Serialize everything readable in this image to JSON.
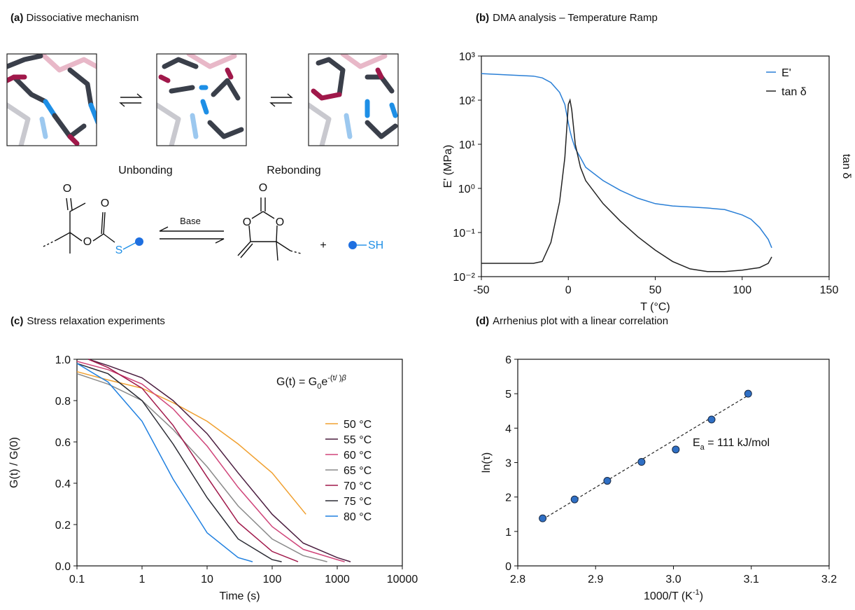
{
  "diagram": {
    "label": "(a)",
    "title": "Dissociative mechanism",
    "steps": [
      "Unbonding",
      "Rebonding"
    ],
    "reagent": "Base",
    "plus": "+",
    "atoms": [
      "O",
      "O",
      "O",
      "S",
      "O",
      "O",
      "O",
      "SH"
    ]
  },
  "chart_data": [
    {
      "type": "line",
      "label": "(b)",
      "title": "DMA analysis – Temperature Ramp",
      "xlabel": "T (°C)",
      "ylabel": "E' (MPa)",
      "y2label": "tan δ",
      "xlim": [
        -50,
        150
      ],
      "xticks": [
        -50,
        0,
        50,
        100,
        150
      ],
      "ylim": [
        0.01,
        1000
      ],
      "ylog": true,
      "yticks": [
        {
          "value": 0.01,
          "label": "10⁻²"
        },
        {
          "value": 0.1,
          "label": "10⁻¹"
        },
        {
          "value": 1,
          "label": "10⁰"
        },
        {
          "value": 10,
          "label": "10¹"
        },
        {
          "value": 100,
          "label": "10²"
        },
        {
          "value": 1000,
          "label": "10³"
        }
      ],
      "legend": "upper right",
      "x": [
        -50,
        -20,
        -15,
        -10,
        -5,
        -2,
        0,
        1,
        2,
        4,
        7,
        10,
        20,
        30,
        40,
        50,
        60,
        70,
        80,
        90,
        100,
        105,
        110,
        115,
        117
      ],
      "series": [
        {
          "name": "E'",
          "color": "#2a7fd6",
          "values": [
            400,
            350,
            320,
            250,
            150,
            80,
            30,
            20,
            14,
            8,
            5,
            3,
            1.5,
            0.9,
            0.6,
            0.45,
            0.4,
            0.38,
            0.36,
            0.33,
            0.25,
            0.2,
            0.13,
            0.07,
            0.045
          ]
        },
        {
          "name": "tan δ",
          "color": "#222222",
          "values": [
            0.02,
            0.02,
            0.022,
            0.06,
            0.5,
            5,
            80,
            100,
            60,
            10,
            3,
            1.5,
            0.45,
            0.18,
            0.08,
            0.04,
            0.022,
            0.015,
            0.013,
            0.013,
            0.014,
            0.015,
            0.016,
            0.02,
            0.028
          ]
        }
      ]
    },
    {
      "type": "line",
      "label": "(c)",
      "title": "Stress relaxation experiments",
      "xlabel": "Time (s)",
      "ylabel": "G(t) / G(0)",
      "annotation": [
        "G(t) = G",
        "0",
        "e",
        "-(t/ )",
        "β"
      ],
      "xlim": [
        0.1,
        10000
      ],
      "xlog": true,
      "xticks": [
        0.1,
        1,
        10,
        100,
        1000,
        10000
      ],
      "ylim": [
        0,
        1
      ],
      "yticks": [
        {
          "value": 0,
          "label": "0.0"
        },
        0.2,
        0.4,
        0.6,
        0.8,
        {
          "value": 1,
          "label": "1.0"
        }
      ],
      "legend": "center right",
      "series": [
        {
          "name": "50 °C",
          "color": "#f0a030",
          "x": [
            0.1,
            0.3,
            1,
            3,
            10,
            30,
            100,
            330
          ],
          "values": [
            0.94,
            0.9,
            0.86,
            0.79,
            0.7,
            0.59,
            0.45,
            0.25
          ]
        },
        {
          "name": "55 °C",
          "color": "#4a1d3f",
          "x": [
            0.15,
            0.3,
            1,
            3,
            10,
            30,
            100,
            300,
            1000,
            1600
          ],
          "values": [
            1,
            0.97,
            0.91,
            0.8,
            0.64,
            0.45,
            0.25,
            0.11,
            0.04,
            0.02
          ]
        },
        {
          "name": "60 °C",
          "color": "#d0457a",
          "x": [
            0.1,
            0.3,
            1,
            3,
            10,
            30,
            100,
            300,
            1000,
            1300
          ],
          "values": [
            0.99,
            0.95,
            0.88,
            0.76,
            0.58,
            0.38,
            0.19,
            0.08,
            0.03,
            0.02
          ]
        },
        {
          "name": "65 °C",
          "color": "#8a8a8a",
          "x": [
            0.1,
            0.3,
            1,
            3,
            10,
            30,
            100,
            300,
            700
          ],
          "values": [
            0.93,
            0.88,
            0.8,
            0.66,
            0.48,
            0.29,
            0.13,
            0.05,
            0.02
          ]
        },
        {
          "name": "70 °C",
          "color": "#a0184a",
          "x": [
            0.15,
            0.3,
            1,
            3,
            10,
            30,
            100,
            250
          ],
          "values": [
            1,
            0.96,
            0.86,
            0.68,
            0.43,
            0.21,
            0.07,
            0.02
          ]
        },
        {
          "name": "75 °C",
          "color": "#2a2a33",
          "x": [
            0.1,
            0.3,
            1,
            3,
            10,
            30,
            100,
            140
          ],
          "values": [
            0.98,
            0.93,
            0.8,
            0.59,
            0.33,
            0.13,
            0.03,
            0.02
          ]
        },
        {
          "name": "80 °C",
          "color": "#2080e0",
          "x": [
            0.1,
            0.3,
            1,
            3,
            10,
            30,
            50
          ],
          "values": [
            0.98,
            0.89,
            0.7,
            0.42,
            0.16,
            0.04,
            0.02
          ]
        }
      ]
    },
    {
      "type": "scatter",
      "label": "(d)",
      "title": "Arrhenius plot with a linear correlation",
      "xlabel": [
        "1000/T (K",
        "-1",
        ")"
      ],
      "ylabel": "ln(τ)",
      "annotation": [
        "E",
        "a",
        " = 111 kJ/mol"
      ],
      "xlim": [
        2.8,
        3.2
      ],
      "xticks": [
        2.8,
        2.9,
        {
          "value": 3,
          "label": "3.0"
        },
        3.1,
        3.2
      ],
      "ylim": [
        0,
        6
      ],
      "yticks": [
        0,
        1,
        2,
        3,
        4,
        5,
        6
      ],
      "color": "#2f6fc4",
      "x": [
        2.832,
        2.873,
        2.915,
        2.959,
        3.003,
        3.049,
        3.096
      ],
      "values": [
        1.38,
        1.93,
        2.47,
        3.02,
        3.38,
        4.25,
        5.0
      ],
      "fit": {
        "x": [
          2.832,
          3.096
        ],
        "values": [
          1.35,
          4.95
        ]
      }
    }
  ]
}
